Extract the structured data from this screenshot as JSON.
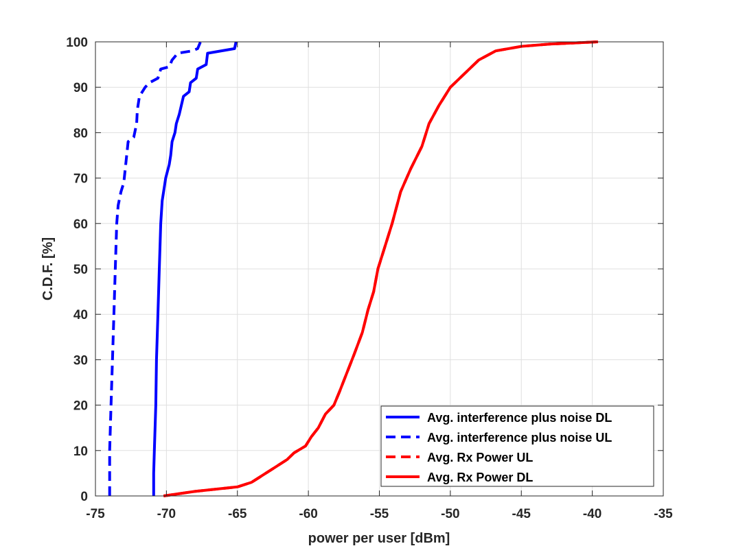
{
  "chart_data": {
    "type": "line",
    "title": "",
    "xlabel": "power per user [dBm]",
    "ylabel": "C.D.F. [%]",
    "xlim": [
      -75,
      -35
    ],
    "ylim": [
      0,
      100
    ],
    "xticks": [
      "-75",
      "-70",
      "-65",
      "-60",
      "-55",
      "-50",
      "-45",
      "-40",
      "-35"
    ],
    "yticks": [
      "0",
      "10",
      "20",
      "30",
      "40",
      "50",
      "60",
      "70",
      "80",
      "90",
      "100"
    ],
    "grid": true,
    "legend_position": "bottom-right",
    "colors": {
      "blue": "#0000ff",
      "red": "#ff0000",
      "axis": "#262626",
      "grid": "#dfdfdf"
    },
    "series": [
      {
        "name": "Avg. interference plus noise DL",
        "color": "#0000ff",
        "style": "solid",
        "points": [
          [
            -70.9,
            0
          ],
          [
            -70.9,
            5
          ],
          [
            -70.85,
            10
          ],
          [
            -70.75,
            20
          ],
          [
            -70.7,
            30
          ],
          [
            -70.6,
            40
          ],
          [
            -70.5,
            50
          ],
          [
            -70.4,
            60
          ],
          [
            -70.3,
            65
          ],
          [
            -70.15,
            68
          ],
          [
            -70.05,
            70
          ],
          [
            -69.8,
            73
          ],
          [
            -69.7,
            75
          ],
          [
            -69.6,
            78
          ],
          [
            -69.4,
            80
          ],
          [
            -69.3,
            82
          ],
          [
            -69.1,
            84
          ],
          [
            -68.95,
            86
          ],
          [
            -68.8,
            88
          ],
          [
            -68.4,
            89
          ],
          [
            -68.3,
            91
          ],
          [
            -67.9,
            92
          ],
          [
            -67.8,
            94
          ],
          [
            -67.2,
            95
          ],
          [
            -67.1,
            97.5
          ],
          [
            -65.2,
            98.5
          ],
          [
            -65.1,
            100
          ]
        ]
      },
      {
        "name": "Avg. interference plus noise UL",
        "color": "#0000ff",
        "style": "dashed",
        "points": [
          [
            -74,
            0
          ],
          [
            -74,
            10
          ],
          [
            -73.9,
            20
          ],
          [
            -73.8,
            30
          ],
          [
            -73.7,
            40
          ],
          [
            -73.6,
            50
          ],
          [
            -73.5,
            60
          ],
          [
            -73.4,
            64
          ],
          [
            -73.2,
            67
          ],
          [
            -73.0,
            69
          ],
          [
            -72.9,
            72
          ],
          [
            -72.8,
            75
          ],
          [
            -72.7,
            78
          ],
          [
            -72.3,
            79
          ],
          [
            -72.1,
            82
          ],
          [
            -72.05,
            85
          ],
          [
            -71.9,
            88
          ],
          [
            -71.5,
            90
          ],
          [
            -71.2,
            91
          ],
          [
            -70.6,
            92
          ],
          [
            -70.4,
            94
          ],
          [
            -69.8,
            94.5
          ],
          [
            -69.6,
            96
          ],
          [
            -69.2,
            97.5
          ],
          [
            -68.2,
            98
          ],
          [
            -67.8,
            98.5
          ],
          [
            -67.6,
            100
          ]
        ]
      },
      {
        "name": " Avg. Rx Power UL",
        "color": "#ff0000",
        "style": "dashed",
        "points": [
          [
            -70.2,
            0
          ],
          [
            -68,
            1
          ],
          [
            -65,
            2
          ],
          [
            -64,
            3
          ],
          [
            -63.5,
            4
          ],
          [
            -62.5,
            6
          ],
          [
            -61.5,
            8
          ],
          [
            -61,
            9.5
          ],
          [
            -60.2,
            11
          ],
          [
            -59.8,
            13
          ],
          [
            -59.3,
            15
          ],
          [
            -58.8,
            18
          ],
          [
            -58.2,
            20
          ],
          [
            -57.8,
            23
          ],
          [
            -57.3,
            27
          ],
          [
            -56.8,
            31
          ],
          [
            -56.2,
            36
          ],
          [
            -55.8,
            41
          ],
          [
            -55.4,
            45
          ],
          [
            -55.1,
            50
          ],
          [
            -54.6,
            55
          ],
          [
            -54.1,
            60
          ],
          [
            -53.5,
            67
          ],
          [
            -52.8,
            72
          ],
          [
            -52.0,
            77
          ],
          [
            -51.5,
            82
          ],
          [
            -50.8,
            86
          ],
          [
            -50.0,
            90
          ],
          [
            -49.0,
            93
          ],
          [
            -48.0,
            96
          ],
          [
            -46.8,
            98
          ],
          [
            -45.0,
            99
          ],
          [
            -43.0,
            99.5
          ],
          [
            -39.6,
            100
          ]
        ]
      },
      {
        "name": "Avg. Rx Power DL",
        "color": "#ff0000",
        "style": "solid",
        "points": [
          [
            -70.2,
            0
          ],
          [
            -68,
            1
          ],
          [
            -65,
            2
          ],
          [
            -64,
            3
          ],
          [
            -63.5,
            4
          ],
          [
            -62.5,
            6
          ],
          [
            -61.5,
            8
          ],
          [
            -61,
            9.5
          ],
          [
            -60.2,
            11
          ],
          [
            -59.8,
            13
          ],
          [
            -59.3,
            15
          ],
          [
            -58.8,
            18
          ],
          [
            -58.2,
            20
          ],
          [
            -57.8,
            23
          ],
          [
            -57.3,
            27
          ],
          [
            -56.8,
            31
          ],
          [
            -56.2,
            36
          ],
          [
            -55.8,
            41
          ],
          [
            -55.4,
            45
          ],
          [
            -55.1,
            50
          ],
          [
            -54.6,
            55
          ],
          [
            -54.1,
            60
          ],
          [
            -53.5,
            67
          ],
          [
            -52.8,
            72
          ],
          [
            -52.0,
            77
          ],
          [
            -51.5,
            82
          ],
          [
            -50.8,
            86
          ],
          [
            -50.0,
            90
          ],
          [
            -49.0,
            93
          ],
          [
            -48.0,
            96
          ],
          [
            -46.8,
            98
          ],
          [
            -45.0,
            99
          ],
          [
            -43.0,
            99.5
          ],
          [
            -39.6,
            100
          ]
        ]
      }
    ]
  }
}
